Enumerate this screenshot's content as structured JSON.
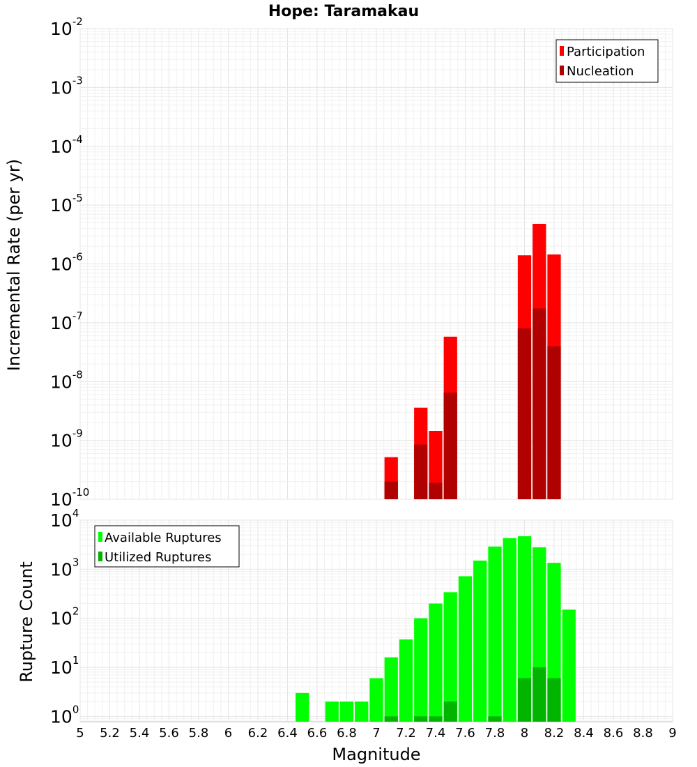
{
  "chart_data": [
    {
      "type": "bar",
      "title": "Hope: Taramakau",
      "xlabel": "",
      "ylabel": "Incremental Rate (per yr)",
      "yscale": "log",
      "xlim": [
        5,
        9
      ],
      "ylim": [
        1e-10,
        0.01
      ],
      "y_ticks": [
        {
          "base": "10",
          "exp": "-10",
          "value": 1e-10
        },
        {
          "base": "10",
          "exp": "-9",
          "value": 1e-09
        },
        {
          "base": "10",
          "exp": "-8",
          "value": 1e-08
        },
        {
          "base": "10",
          "exp": "-7",
          "value": 1e-07
        },
        {
          "base": "10",
          "exp": "-6",
          "value": 1e-06
        },
        {
          "base": "10",
          "exp": "-5",
          "value": 1e-05
        },
        {
          "base": "10",
          "exp": "-4",
          "value": 0.0001
        },
        {
          "base": "10",
          "exp": "-3",
          "value": 0.001
        },
        {
          "base": "10",
          "exp": "-2",
          "value": 0.01
        }
      ],
      "legend_position": "top-right",
      "legend": [
        "Participation",
        "Nucleation"
      ],
      "bin_width": 0.1,
      "series": [
        {
          "name": "Participation",
          "color": "#ff0000",
          "x": [
            7.1,
            7.3,
            7.4,
            7.5,
            8.0,
            8.1,
            8.2
          ],
          "values": [
            5.2e-10,
            3.6e-09,
            1.45e-09,
            5.8e-08,
            1.4e-06,
            4.8e-06,
            1.45e-06
          ]
        },
        {
          "name": "Nucleation",
          "color": "#b10000",
          "x": [
            7.1,
            7.3,
            7.4,
            7.5,
            8.0,
            8.1,
            8.2
          ],
          "values": [
            2e-10,
            8.5e-10,
            1.9e-10,
            6.5e-09,
            8e-08,
            1.75e-07,
            4e-08
          ]
        }
      ]
    },
    {
      "type": "bar",
      "title": "",
      "xlabel": "Magnitude",
      "ylabel": "Rupture Count",
      "yscale": "log",
      "xlim": [
        5,
        9
      ],
      "ylim": [
        0.78,
        10000.0
      ],
      "y_ticks": [
        {
          "base": "10",
          "exp": "0",
          "value": 1
        },
        {
          "base": "10",
          "exp": "1",
          "value": 10
        },
        {
          "base": "10",
          "exp": "2",
          "value": 100
        },
        {
          "base": "10",
          "exp": "3",
          "value": 1000
        },
        {
          "base": "10",
          "exp": "4",
          "value": 10000
        }
      ],
      "x_ticks": [
        "5",
        "5.2",
        "5.4",
        "5.6",
        "5.8",
        "6",
        "6.2",
        "6.4",
        "6.6",
        "6.8",
        "7",
        "7.2",
        "7.4",
        "7.6",
        "7.8",
        "8",
        "8.2",
        "8.4",
        "8.6",
        "8.8",
        "9"
      ],
      "legend_position": "top-left",
      "legend": [
        "Available Ruptures",
        "Utilized Ruptures"
      ],
      "bin_width": 0.1,
      "series": [
        {
          "name": "Available Ruptures",
          "color": "#00ff00",
          "x": [
            6.5,
            6.7,
            6.8,
            6.9,
            7.0,
            7.1,
            7.2,
            7.3,
            7.4,
            7.5,
            7.6,
            7.7,
            7.8,
            7.9,
            8.0,
            8.1,
            8.2,
            8.3
          ],
          "values": [
            3,
            2,
            2,
            2,
            6,
            16,
            37,
            100,
            200,
            340,
            720,
            1500,
            2900,
            4300,
            4700,
            2800,
            1350,
            150
          ]
        },
        {
          "name": "Utilized Ruptures",
          "color": "#00b400",
          "x": [
            7.1,
            7.3,
            7.4,
            7.5,
            7.8,
            8.0,
            8.1,
            8.2
          ],
          "values": [
            1,
            1,
            1,
            2,
            1,
            6,
            10,
            6
          ]
        }
      ]
    }
  ]
}
